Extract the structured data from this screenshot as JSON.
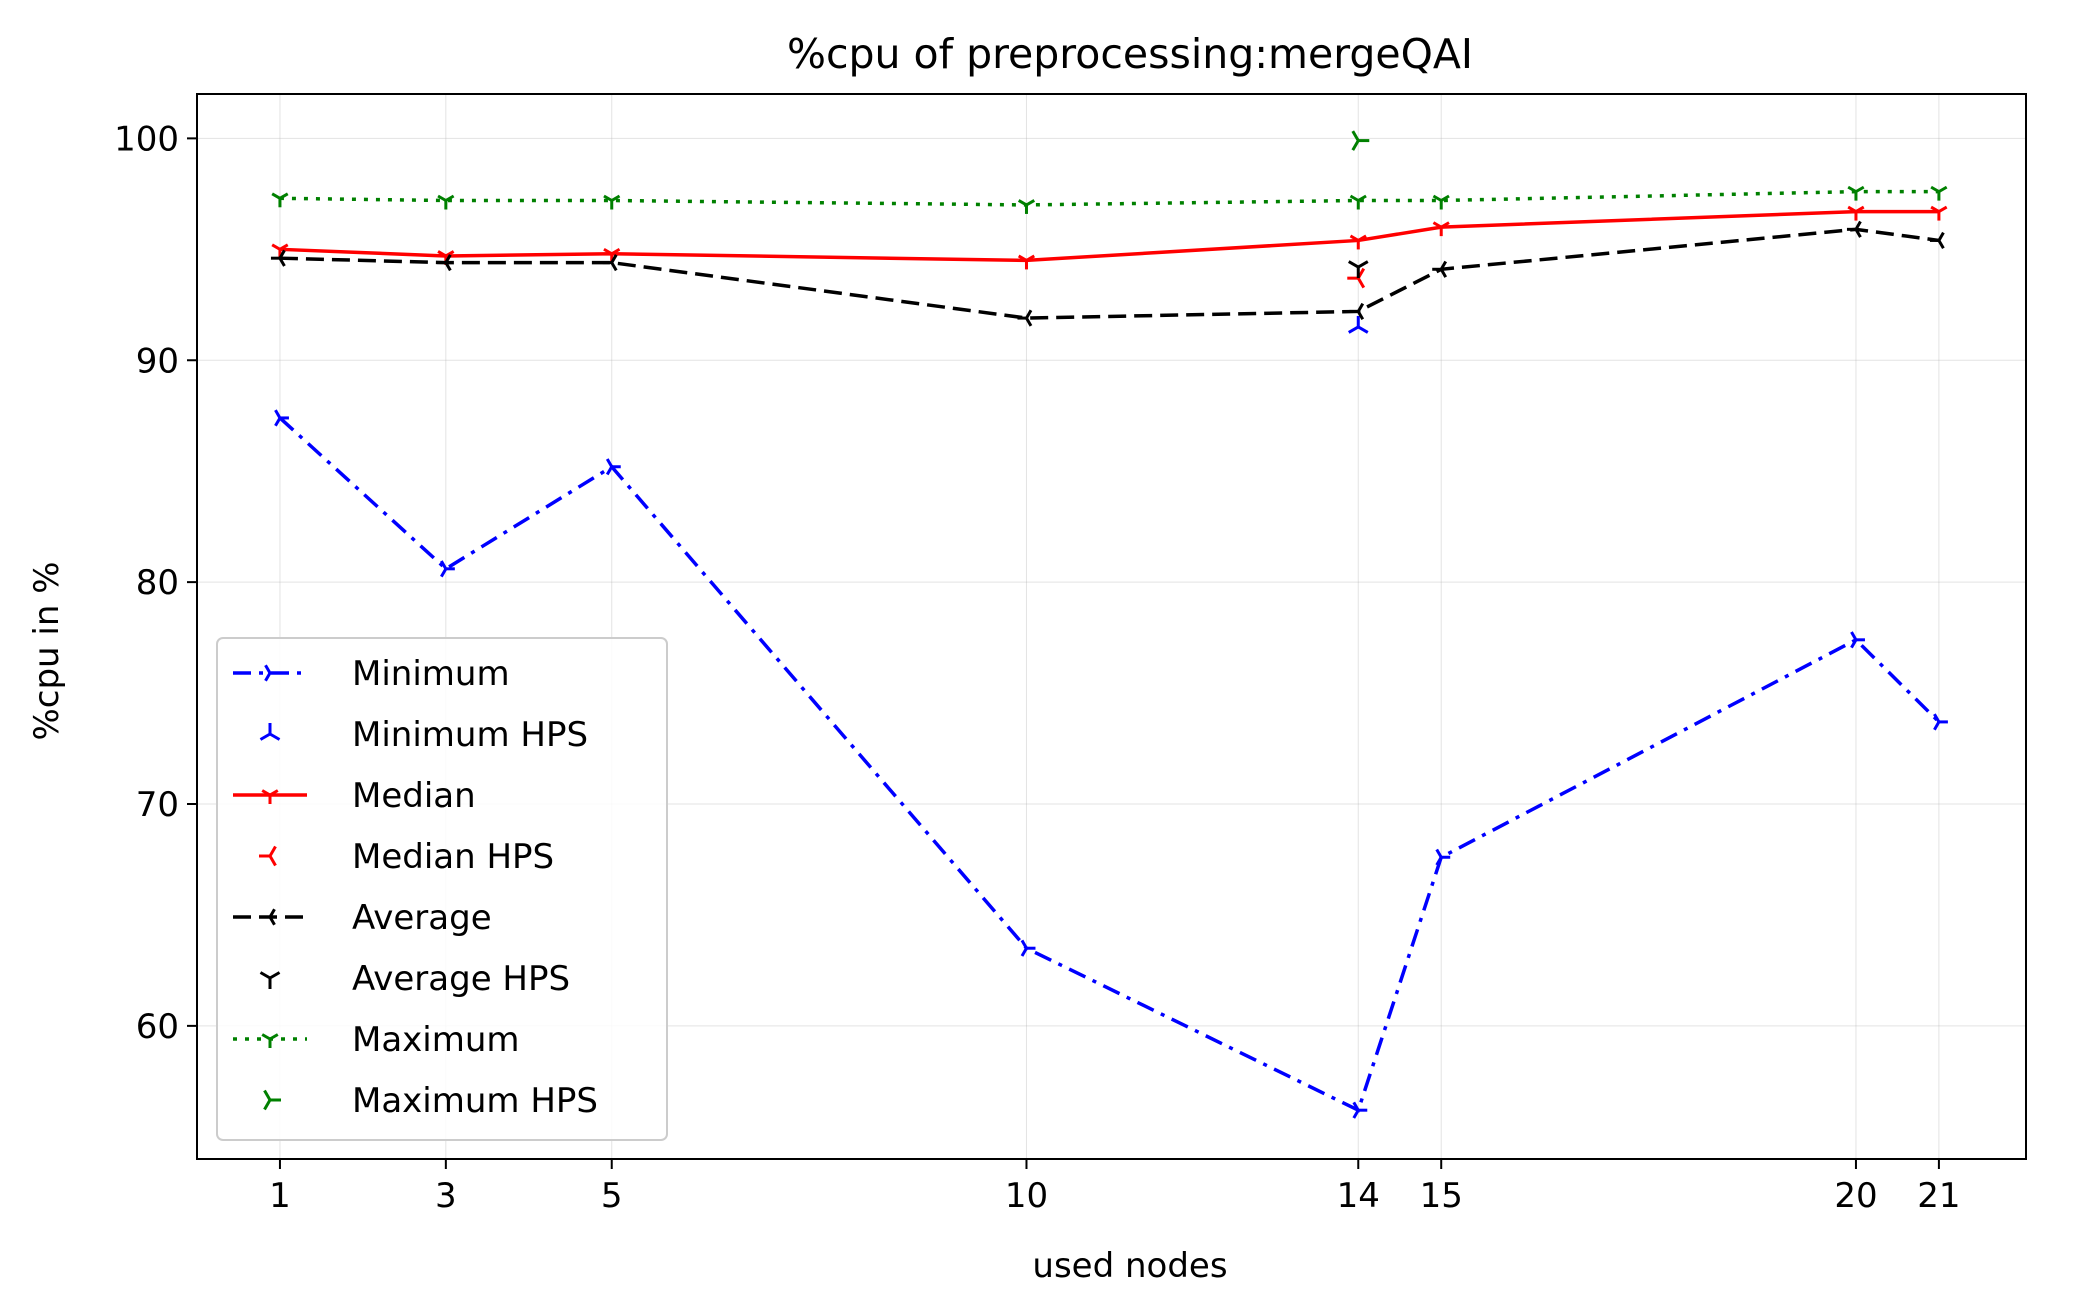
{
  "chart_data": {
    "type": "line",
    "title": "%cpu of preprocessing:mergeQAI",
    "xlabel": "used nodes",
    "ylabel": "%cpu in %",
    "xlim": [
      0,
      22.05
    ],
    "ylim": [
      54,
      102
    ],
    "xticks": [
      1,
      3,
      5,
      10,
      14,
      15,
      20,
      21
    ],
    "yticks": [
      60,
      70,
      80,
      90,
      100
    ],
    "grid": true,
    "legend_position": "lower-left",
    "x": [
      1,
      3,
      5,
      10,
      14,
      15,
      20,
      21
    ],
    "series": [
      {
        "name": "Minimum",
        "color": "#0000ff",
        "dash": "dashdot",
        "marker": "tri-right",
        "values": [
          87.4,
          80.6,
          85.2,
          63.5,
          56.2,
          67.6,
          77.4,
          73.7
        ]
      },
      {
        "name": "Minimum HPS",
        "color": "#0000ff",
        "marker": "tri-up",
        "scatter": true,
        "x": [
          14
        ],
        "values": [
          91.5
        ]
      },
      {
        "name": "Median",
        "color": "#ff0000",
        "dash": "solid",
        "marker": "tri-down",
        "values": [
          95.0,
          94.7,
          94.8,
          94.5,
          95.4,
          96.0,
          96.7,
          96.7
        ]
      },
      {
        "name": "Median HPS",
        "color": "#ff0000",
        "marker": "tri-left",
        "scatter": true,
        "x": [
          14
        ],
        "values": [
          93.7
        ]
      },
      {
        "name": "Average",
        "color": "#000000",
        "dash": "dashed",
        "marker": "tri-left",
        "values": [
          94.6,
          94.4,
          94.4,
          91.9,
          92.2,
          94.1,
          95.9,
          95.4
        ]
      },
      {
        "name": "Average HPS",
        "color": "#000000",
        "marker": "tri-down",
        "scatter": true,
        "x": [
          14
        ],
        "values": [
          94.2
        ]
      },
      {
        "name": "Maximum",
        "color": "#008000",
        "dash": "dotted",
        "marker": "tri-down",
        "values": [
          97.3,
          97.2,
          97.2,
          97.0,
          97.2,
          97.2,
          97.6,
          97.6
        ]
      },
      {
        "name": "Maximum HPS",
        "color": "#008000",
        "marker": "tri-right",
        "scatter": true,
        "x": [
          14
        ],
        "values": [
          99.9
        ]
      }
    ]
  }
}
